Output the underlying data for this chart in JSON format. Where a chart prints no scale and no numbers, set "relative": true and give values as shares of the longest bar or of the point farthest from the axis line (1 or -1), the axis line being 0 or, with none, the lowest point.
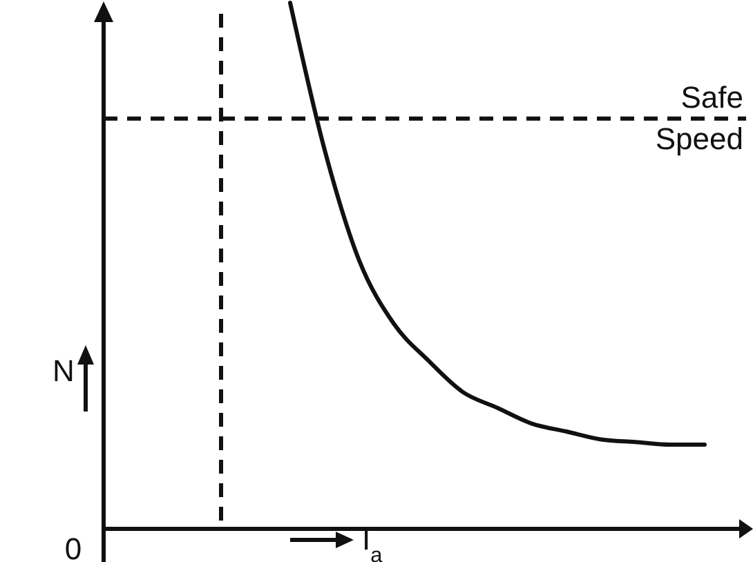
{
  "chart_data": {
    "type": "line",
    "relative": true,
    "xlabel": "I$_{a}$",
    "ylabel": "N",
    "categories": [
      null,
      null,
      null,
      null,
      null,
      null,
      null,
      null,
      null,
      null,
      null,
      null,
      null,
      null,
      null
    ],
    "values": [
      null,
      null,
      1,
      0.72,
      0.51,
      0.39,
      0.32,
      0.26,
      0.23,
      0.2,
      0.185,
      0.17,
      0.165,
      0.16,
      0.16
    ],
    "color": "#111111",
    "line_style": "solid",
    "ref_lines": [
      {
        "axis": "y",
        "value": 0.78,
        "label": "Safe Speed",
        "line_style": "dashed",
        "color": "#111111"
      }
    ],
    "annotations": [
      "0"
    ]
  }
}
